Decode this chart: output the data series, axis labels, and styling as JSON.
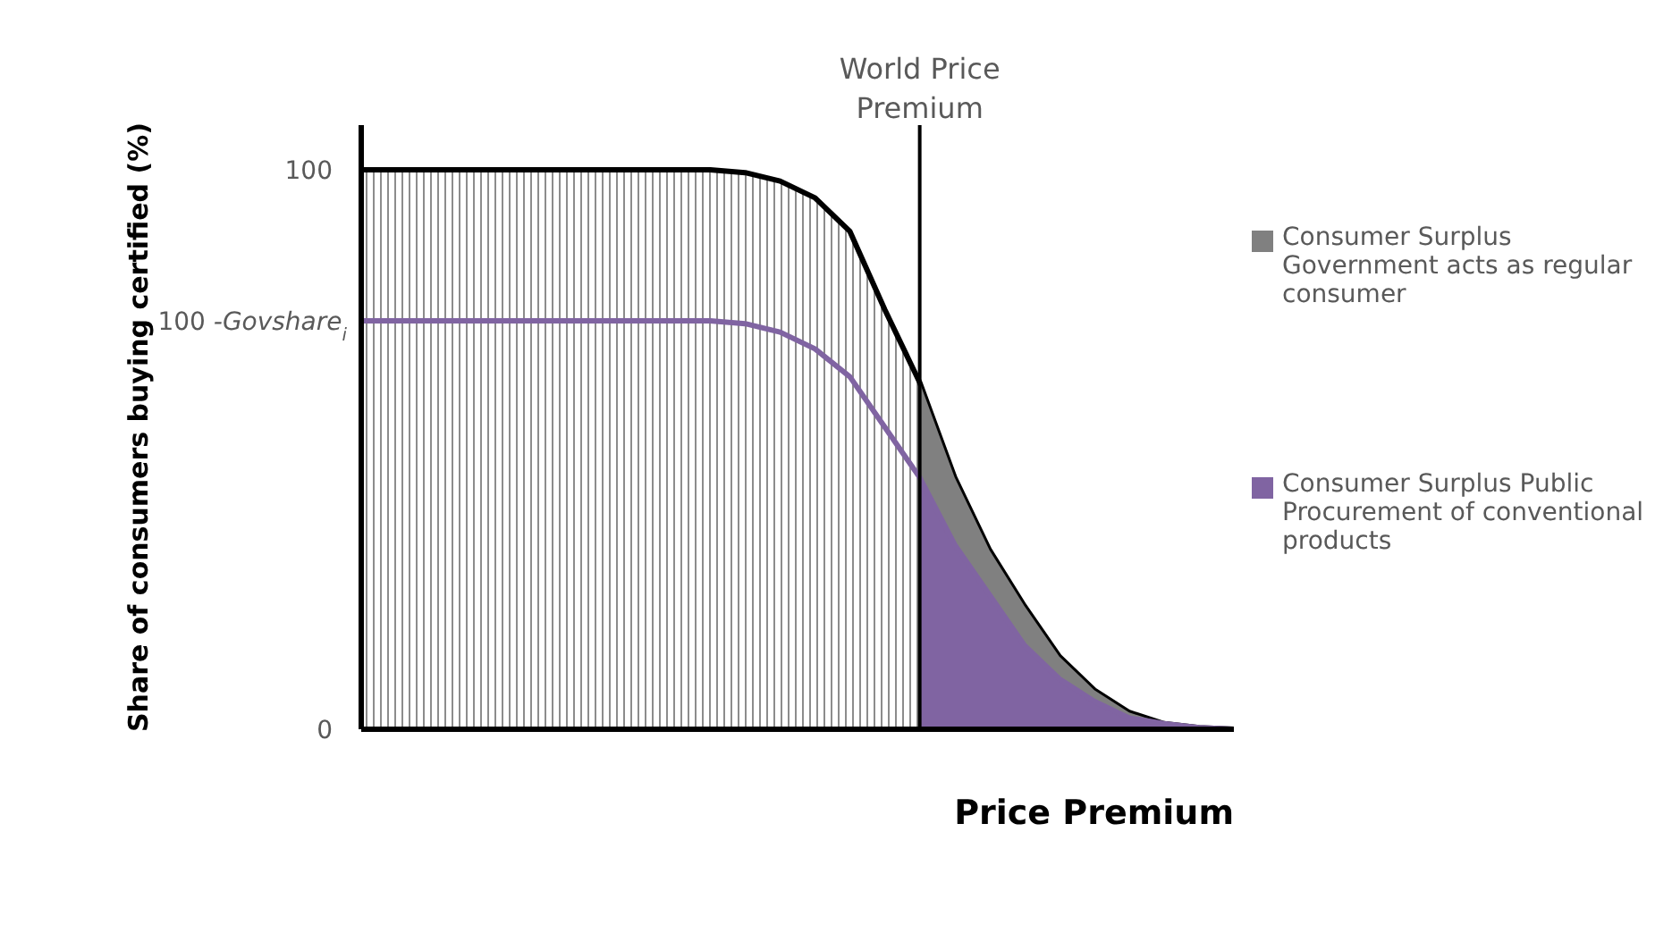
{
  "chart_data": {
    "type": "area",
    "xlabel": "Price Premium",
    "ylabel": "Share of consumers buying certified (%)",
    "categories": [
      null,
      null,
      null,
      null,
      null,
      null,
      null,
      null,
      null,
      null,
      null,
      null,
      null,
      null,
      null,
      null,
      null,
      null,
      null,
      null,
      null,
      null,
      null,
      null,
      null,
      null
    ],
    "ylim": [
      0,
      108
    ],
    "yticks": [
      0,
      100
    ],
    "annotations": [
      "World Price Premium",
      "100 -Govshare$_{i}$"
    ],
    "tick_labels": "y",
    "series": [
      {
        "color": "#000000",
        "values": [
          100,
          100,
          100,
          100,
          100,
          100,
          100,
          100,
          100,
          100,
          100,
          99.5,
          98,
          95,
          89,
          75,
          62,
          45,
          32,
          22,
          13,
          7,
          3,
          1,
          0.3,
          0
        ]
      },
      {
        "name": "Consumer Surplus Government acts as regular consumer",
        "color": "#808080",
        "values": [
          null,
          null,
          null,
          null,
          null,
          null,
          null,
          null,
          null,
          null,
          null,
          null,
          null,
          null,
          null,
          null,
          62,
          45,
          32,
          22,
          13,
          7,
          3,
          1,
          0.3,
          0
        ]
      },
      {
        "name": "Consumer Surplus Public Procurement of conventional products",
        "color": "#8064a2",
        "values": [
          null,
          null,
          null,
          null,
          null,
          null,
          null,
          null,
          null,
          null,
          null,
          null,
          null,
          null,
          null,
          null,
          45,
          33,
          24,
          15,
          9,
          5,
          2,
          1,
          0.3,
          0
        ]
      },
      {
        "type": "line",
        "color": "#8064a2",
        "values": [
          73,
          73,
          73,
          73,
          73,
          73,
          73,
          73,
          73,
          73,
          73,
          72.5,
          71,
          68,
          63,
          54,
          45,
          33,
          24,
          15,
          9,
          5,
          2,
          1,
          0.3,
          0
        ]
      }
    ],
    "legend": "right"
  }
}
